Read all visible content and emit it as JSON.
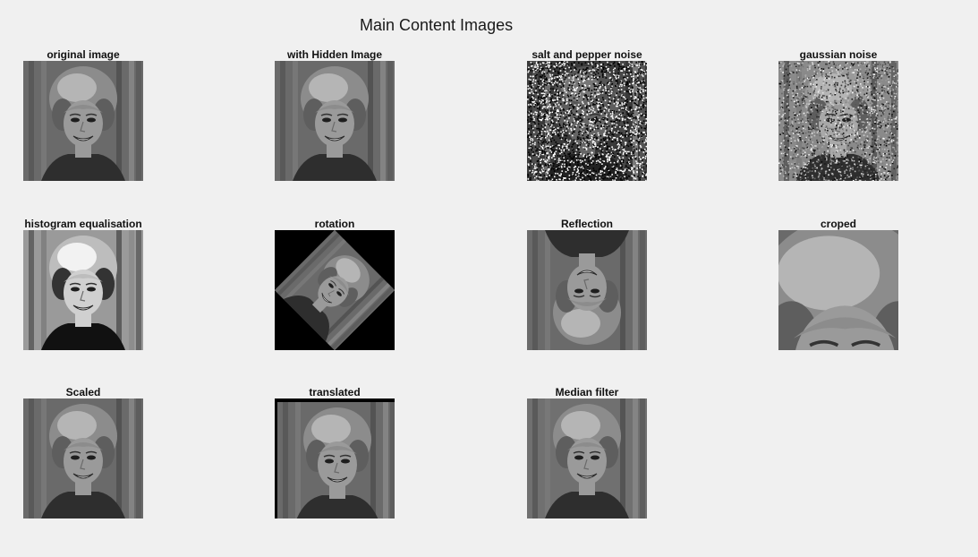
{
  "figure": {
    "title": "Main Content Images"
  },
  "panels": [
    {
      "title": "original image",
      "kind": "original"
    },
    {
      "title": "with Hidden Image",
      "kind": "hidden"
    },
    {
      "title": "salt and pepper noise",
      "kind": "saltpepper"
    },
    {
      "title": "gaussian noise",
      "kind": "gaussian"
    },
    {
      "title": "histogram equalisation",
      "kind": "histeq"
    },
    {
      "title": "rotation",
      "kind": "rotation"
    },
    {
      "title": "Reflection",
      "kind": "reflection"
    },
    {
      "title": "croped",
      "kind": "cropped"
    },
    {
      "title": "Scaled",
      "kind": "scaled"
    },
    {
      "title": "translated",
      "kind": "translated"
    },
    {
      "title": "Median filter",
      "kind": "median"
    }
  ]
}
